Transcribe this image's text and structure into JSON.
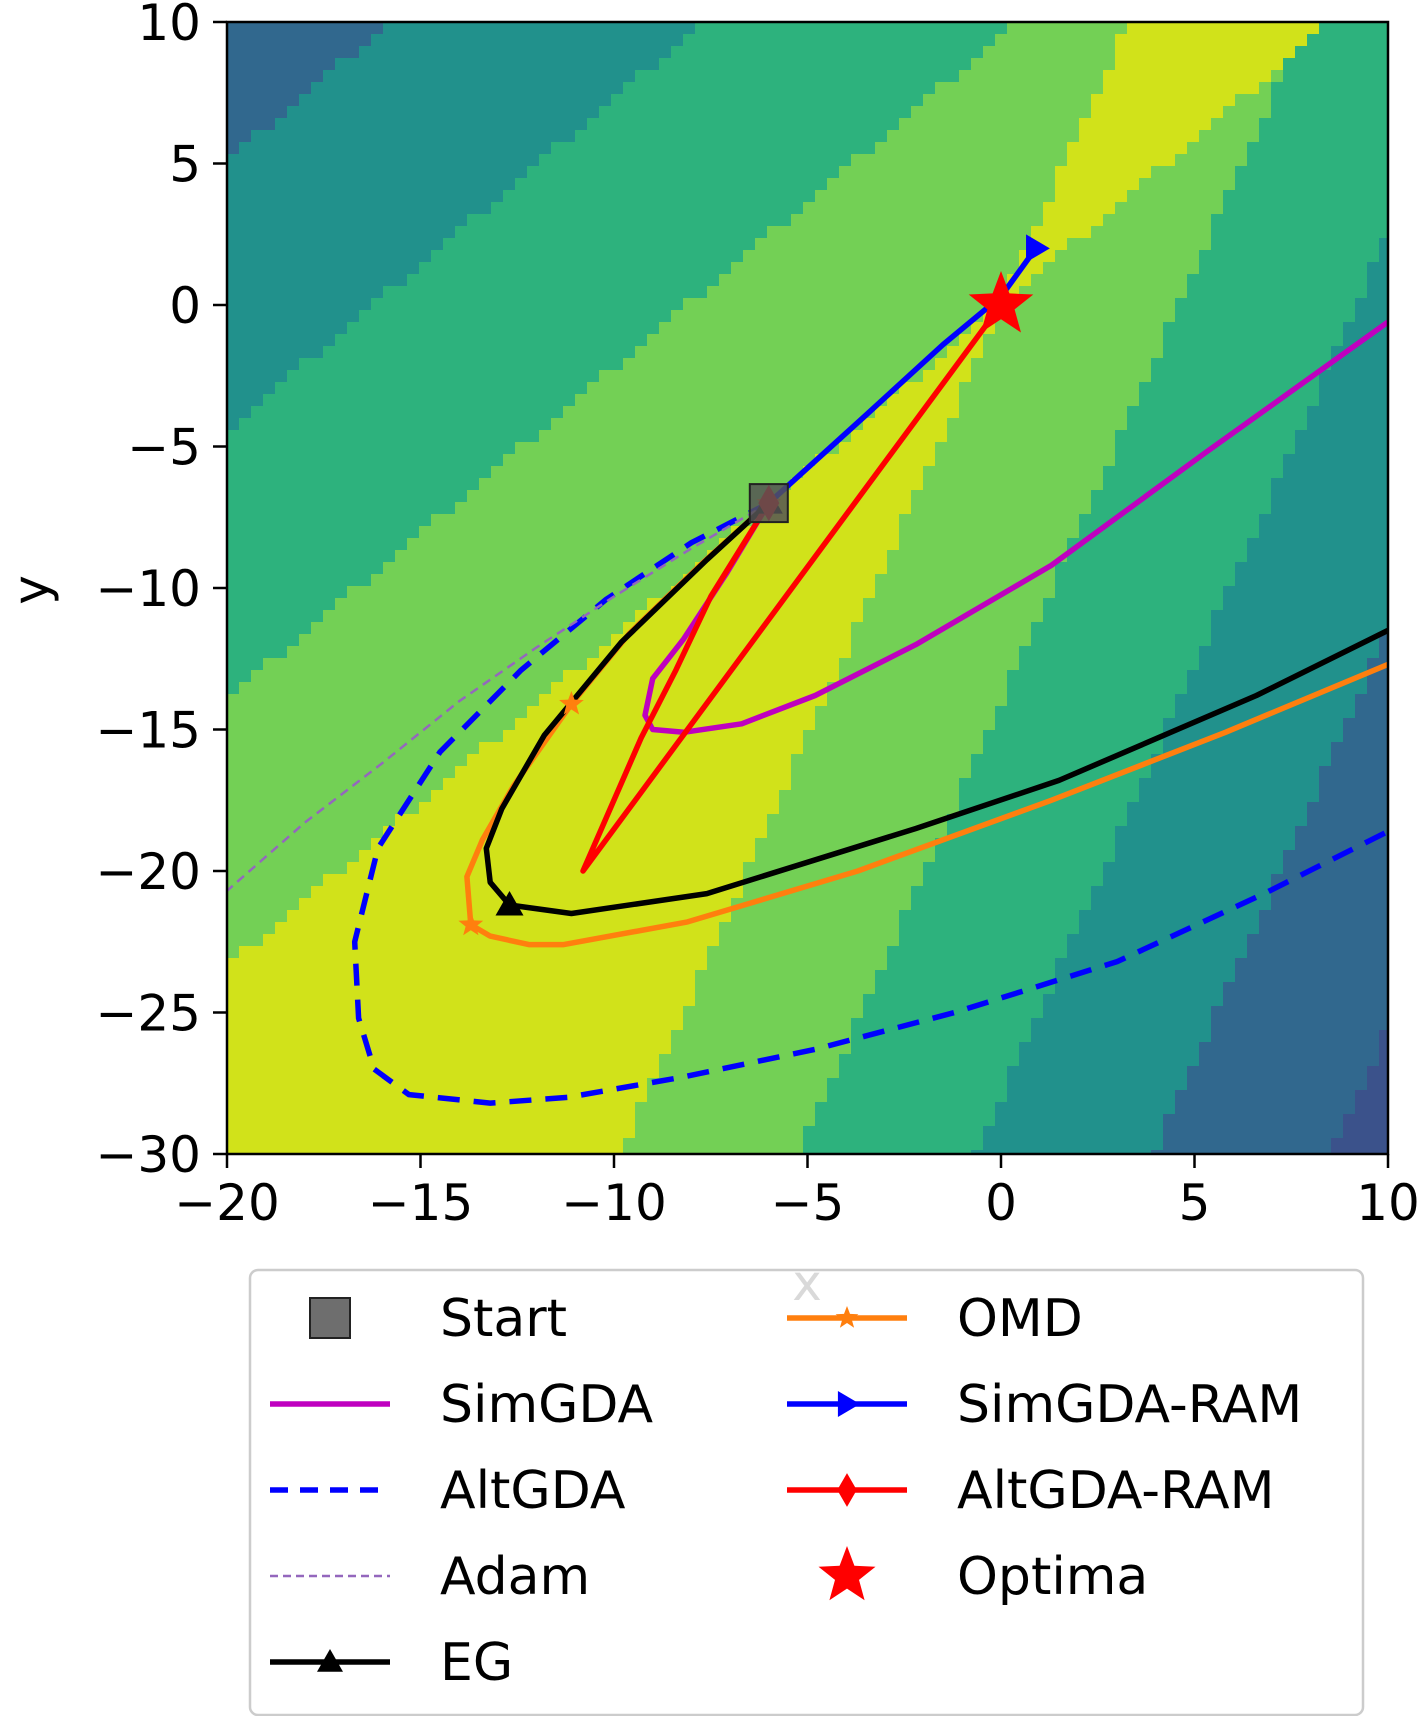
{
  "chart_data": {
    "type": "line",
    "background": "filled-contour",
    "xlabel": "x",
    "ylabel": "y",
    "xlim": [
      -20,
      10
    ],
    "ylim": [
      -30,
      10
    ],
    "xticks": [
      -20,
      -15,
      -10,
      -5,
      0,
      5,
      10
    ],
    "xtick_labels": [
      "−20",
      "−15",
      "−10",
      "−5",
      "0",
      "5",
      "10"
    ],
    "yticks": [
      -30,
      -25,
      -20,
      -15,
      -10,
      -5,
      0,
      5,
      10
    ],
    "ytick_labels": [
      "−30",
      "−25",
      "−20",
      "−15",
      "−10",
      "−5",
      "0",
      "5",
      "10"
    ],
    "grid": false,
    "legend_position": "below",
    "contour_colors": [
      "#440154",
      "#3b528b",
      "#31688e",
      "#21918c",
      "#2db27d",
      "#73d055",
      "#d1e21a"
    ],
    "series": [
      {
        "name": "SimGDA",
        "color": "#bf00bf",
        "style": "solid",
        "marker": "none",
        "x": [
          -6,
          -7.1,
          -8.2,
          -9.0,
          -9.2,
          -9.0,
          -8.2,
          -6.7,
          -4.8,
          -2.2,
          1.3,
          5.3,
          10
        ],
        "y": [
          -7,
          -9.5,
          -11.8,
          -13.2,
          -14.5,
          -15.0,
          -15.1,
          -14.8,
          -13.8,
          -12.0,
          -9.2,
          -5.2,
          -0.6
        ]
      },
      {
        "name": "AltGDA",
        "color": "#0000ff",
        "style": "dashed",
        "marker": "none",
        "x": [
          -6,
          -8.0,
          -10.2,
          -12.4,
          -14.5,
          -16.1,
          -16.7,
          -16.6,
          -16.2,
          -15.3,
          -13.2,
          -11.2,
          -8.3,
          -4.8,
          -1.2,
          3.0,
          6.8,
          10
        ],
        "y": [
          -7,
          -8.4,
          -10.4,
          -12.9,
          -15.8,
          -19.2,
          -22.5,
          -25.2,
          -27.0,
          -27.9,
          -28.2,
          -28.0,
          -27.3,
          -26.3,
          -25.0,
          -23.2,
          -20.8,
          -18.6
        ]
      },
      {
        "name": "Adam",
        "color": "#9467bd",
        "style": "dashed-thin",
        "marker": "none",
        "x": [
          -6,
          -8,
          -10,
          -12,
          -14,
          -16,
          -18,
          -20
        ],
        "y": [
          -7,
          -8.6,
          -10.3,
          -12.1,
          -14.0,
          -16.2,
          -18.3,
          -20.7
        ]
      },
      {
        "name": "EG",
        "color": "#000000",
        "style": "solid",
        "marker": "triangle",
        "x": [
          -6,
          -7.6,
          -9.8,
          -11.8,
          -12.9,
          -13.3,
          -13.2,
          -12.7,
          -11.1,
          -7.6,
          -2.2,
          1.5,
          6.6,
          10
        ],
        "y": [
          -7,
          -9.0,
          -11.9,
          -15.2,
          -17.8,
          -19.2,
          -20.4,
          -21.2,
          -21.5,
          -20.8,
          -18.5,
          -16.8,
          -13.8,
          -11.5
        ],
        "marker_x": [
          -6,
          -12.7
        ],
        "marker_y": [
          -7,
          -21.2
        ]
      },
      {
        "name": "OMD",
        "color": "#ff7f0e",
        "style": "solid",
        "marker": "star",
        "x": [
          -6,
          -7.7,
          -9.6,
          -11.1,
          -12.6,
          -13.4,
          -13.8,
          -13.7,
          -13.2,
          -12.2,
          -11.3,
          -8.1,
          -3.7,
          1.3,
          5.8,
          10
        ],
        "y": [
          -7,
          -9.1,
          -11.6,
          -14.1,
          -17.0,
          -18.9,
          -20.2,
          -21.9,
          -22.3,
          -22.6,
          -22.6,
          -21.8,
          -20.0,
          -17.5,
          -15.1,
          -12.7
        ],
        "marker_x": [
          -6,
          -11.1,
          -13.7
        ],
        "marker_y": [
          -7,
          -14.1,
          -21.9
        ]
      },
      {
        "name": "SimGDA-RAM",
        "color": "#0000ff",
        "style": "solid",
        "marker": "triangle-right",
        "x": [
          -6,
          -3.5,
          -1.5,
          0,
          0.9
        ],
        "y": [
          -7,
          -3.9,
          -1.4,
          0.3,
          2.0
        ],
        "marker_x": [
          0.9
        ],
        "marker_y": [
          2.0
        ]
      },
      {
        "name": "AltGDA-RAM",
        "color": "#ff0000",
        "style": "solid",
        "marker": "diamond",
        "x": [
          -6,
          -7.5,
          -8.4,
          -9.3,
          -10.8,
          0,
          -0.1
        ],
        "y": [
          -7,
          -10.3,
          -12.9,
          -15.3,
          -20.0,
          0,
          0.2
        ],
        "marker_x": [
          -6
        ],
        "marker_y": [
          -7
        ]
      }
    ],
    "points": [
      {
        "name": "Start",
        "x": -6,
        "y": -7,
        "marker": "square",
        "color": "#555555"
      },
      {
        "name": "Optima",
        "x": 0,
        "y": 0,
        "marker": "star",
        "color": "#ff0000"
      }
    ],
    "legend": {
      "col1": [
        "Start",
        "SimGDA",
        "AltGDA",
        "Adam",
        "EG"
      ],
      "col2": [
        "OMD",
        "SimGDA-RAM",
        "AltGDA-RAM",
        "Optima"
      ]
    }
  }
}
